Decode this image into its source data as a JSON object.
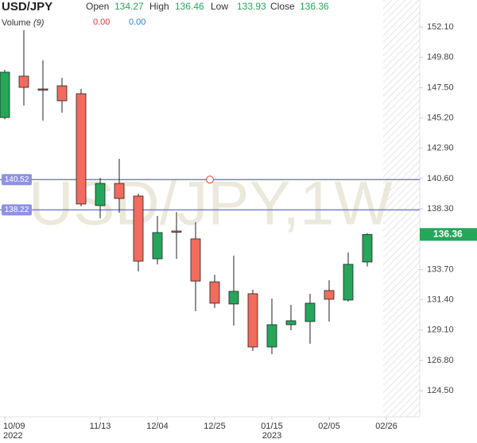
{
  "chart_data": {
    "type": "candlestick",
    "title": "USD/JPY",
    "watermark": "USD/JPY,1W",
    "header": [
      {
        "label": "Open",
        "value": 134.27
      },
      {
        "label": "High",
        "value": 136.46
      },
      {
        "label": "Low",
        "value": 133.93
      },
      {
        "label": "Close",
        "value": 136.36
      }
    ],
    "volume_label": "Volume",
    "volume_period": "(9)",
    "volume_values": [
      {
        "label": "0.00",
        "color": "#e53935"
      },
      {
        "label": "0.00",
        "color": "#2f7bd8"
      }
    ],
    "categories": [
      "10/09",
      null,
      null,
      null,
      null,
      "11/13",
      null,
      null,
      "12/04",
      null,
      null,
      "12/25",
      null,
      null,
      "01/15",
      null,
      null,
      "02/05",
      null,
      null,
      "02/26"
    ],
    "x_years": [
      "2022",
      "2023"
    ],
    "open": [
      145.23,
      148.37,
      147.4,
      147.64,
      147.04,
      138.55,
      140.23,
      139.27,
      134.51,
      136.62,
      136.02,
      132.76,
      131.08,
      131.86,
      127.82,
      129.51,
      129.75,
      132.1,
      131.38,
      134.27,
      null
    ],
    "high": [
      148.85,
      151.86,
      149.57,
      148.24,
      147.4,
      140.65,
      142.1,
      139.45,
      137.76,
      138.06,
      137.28,
      133.3,
      134.75,
      132.16,
      131.5,
      131.02,
      131.86,
      132.88,
      134.99,
      136.46,
      null
    ],
    "low": [
      145.1,
      146.14,
      145.0,
      145.6,
      138.49,
      137.58,
      138.0,
      133.55,
      134.09,
      134.51,
      130.53,
      130.78,
      129.45,
      127.52,
      127.28,
      129.09,
      128.06,
      129.75,
      131.26,
      133.93,
      null
    ],
    "close": [
      148.67,
      147.52,
      147.34,
      146.5,
      138.67,
      140.23,
      139.09,
      134.33,
      136.5,
      136.6,
      132.82,
      131.14,
      132.04,
      127.82,
      129.51,
      129.81,
      131.14,
      131.44,
      134.09,
      136.36,
      null
    ],
    "up_color": "#26a65b",
    "down_color": "#f26b5e",
    "ylim": [
      122.52,
      154.15
    ],
    "yticks": [
      {
        "value": 124.5,
        "label": "124.50"
      },
      {
        "value": 126.8,
        "label": "126.80"
      },
      {
        "value": 129.1,
        "label": "129.10"
      },
      {
        "value": 131.4,
        "label": "131.40"
      },
      {
        "value": 133.7,
        "label": "133.70"
      },
      {
        "value": 138.3,
        "label": "138.30"
      },
      {
        "value": 140.6,
        "label": "140.60"
      },
      {
        "value": 142.9,
        "label": "142.90"
      },
      {
        "value": 145.2,
        "label": "145.20"
      },
      {
        "value": 147.5,
        "label": "147.50"
      },
      {
        "value": 149.8,
        "label": "149.80"
      },
      {
        "value": 152.1,
        "label": "152.10"
      }
    ],
    "hlines": [
      140.52,
      138.22
    ],
    "hline_color": "#7b7fd4"
  }
}
